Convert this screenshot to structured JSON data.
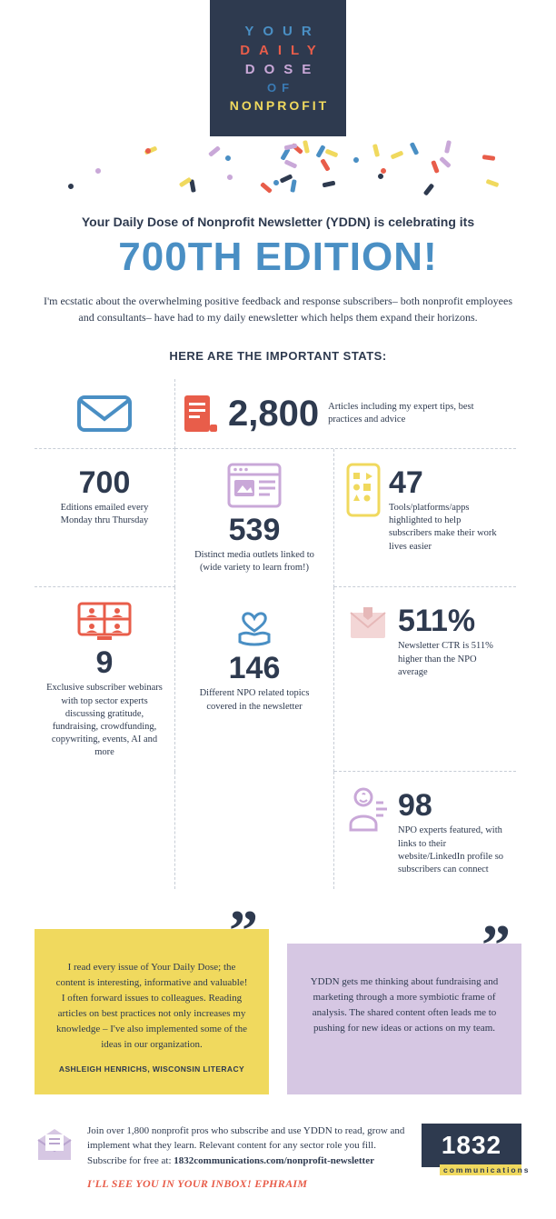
{
  "logo": {
    "w1": "YOUR",
    "w2": "DAILY",
    "w3": "DOSE",
    "w4": "OF",
    "w5": "NONPROFIT",
    "bg": "#2e3a4f",
    "colors": {
      "your": "#4a8fc4",
      "daily": "#e85d4a",
      "dose": "#c9a8d8",
      "of": "#3a7bb5",
      "nonprofit": "#f0d95e"
    }
  },
  "confetti_colors": [
    "#e85d4a",
    "#4a8fc4",
    "#f0d95e",
    "#c9a8d8",
    "#2e3a4f"
  ],
  "intro_line": "Your Daily Dose of Nonprofit Newsletter (YDDN) is celebrating its",
  "big_title": "700TH EDITION!",
  "intro_body": "I'm ecstatic about the overwhelming positive feedback and response subscribers– both nonprofit employees and consultants– have had to my daily enewsletter which helps them expand their horizons.",
  "stats_head": "HERE ARE THE IMPORTANT STATS:",
  "stats": {
    "articles": {
      "value": "2,800",
      "text": "Articles including my expert tips, best practices and advice",
      "icon": "doc",
      "icon_color": "#e85d4a"
    },
    "editions": {
      "value": "700",
      "text": "Editions emailed every Monday thru Thursday",
      "icon": "envelope",
      "icon_color": "#4a8fc4"
    },
    "outlets": {
      "value": "539",
      "text": "Distinct media outlets linked to (wide variety to learn from!)",
      "icon": "browser",
      "icon_color": "#c9a8d8"
    },
    "tools": {
      "value": "47",
      "text": "Tools/platforms/apps highlighted to help subscribers make their work lives easier",
      "icon": "phone-apps",
      "icon_color": "#f0d95e"
    },
    "webinars": {
      "value": "9",
      "text": "Exclusive subscriber webinars with top sector experts discussing gratitude, fundraising, crowdfunding, copywriting, events, AI and more",
      "icon": "meeting",
      "icon_color": "#e85d4a"
    },
    "ctr": {
      "value": "511%",
      "text": "Newsletter CTR is 511% higher than the NPO average",
      "icon": "mail-heart",
      "icon_color": "#e6b8b8"
    },
    "topics": {
      "value": "146",
      "text": "Different NPO related topics covered in the newsletter",
      "icon": "hand-heart",
      "icon_color": "#4a8fc4"
    },
    "experts": {
      "value": "98",
      "text": "NPO experts featured, with links to their website/LinkedIn profile so subscribers can connect",
      "icon": "person",
      "icon_color": "#c9a8d8"
    }
  },
  "quotes": [
    {
      "bg": "#f0d95e",
      "text": "I read every issue of Your Daily Dose; the content is interesting, informative and valuable! I often forward issues to colleagues. Reading articles on best practices not only increases my knowledge – I've also implemented some of the ideas in our organization.",
      "attrib": "ASHLEIGH HENRICHS, WISCONSIN LITERACY"
    },
    {
      "bg": "#d6c7e3",
      "text": "YDDN gets me thinking about fundraising and marketing through a more symbiotic frame of analysis. The shared content often leads me to pushing for new ideas or actions on my team.",
      "attrib": ""
    }
  ],
  "footer": {
    "text_a": "Join over 1,800 nonprofit pros who subscribe and use YDDN to read, grow and implement what they learn. Relevant content for any sector role you fill. Subscribe for free at: ",
    "link": "1832communications.com/nonprofit-newsletter",
    "signoff": "I'LL SEE YOU IN YOUR INBOX! EPHRAIM",
    "brand_num": "1832",
    "brand_tag": "communications",
    "icon_color": "#b9a4cf"
  },
  "colors": {
    "navy": "#2e3a4f",
    "blue": "#4a8fc4",
    "red": "#e85d4a",
    "yellow": "#f0d95e",
    "lilac": "#c9a8d8",
    "dash": "#c7cdd6"
  },
  "typography": {
    "big_title_size": 44,
    "stat_num_size": 34,
    "body_size": 12
  }
}
